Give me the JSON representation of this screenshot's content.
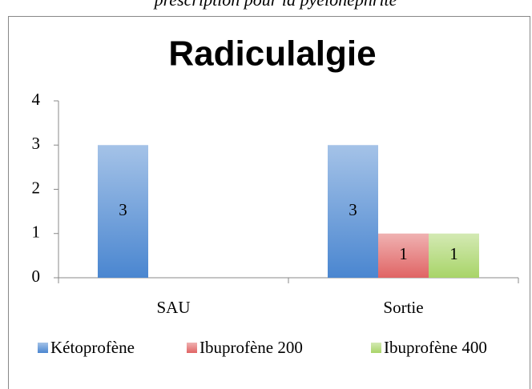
{
  "caption": "prescription pour la pyélonéphrite",
  "chart_data": {
    "type": "bar",
    "title": "Radiculalgie",
    "categories": [
      "SAU",
      "Sortie"
    ],
    "series": [
      {
        "name": "Kétoprofène",
        "color": "#4a86d0",
        "values": [
          3,
          3
        ]
      },
      {
        "name": "Ibuprofène 200",
        "color": "#e06464",
        "values": [
          null,
          1
        ]
      },
      {
        "name": "Ibuprofène 400",
        "color": "#a8d468",
        "values": [
          null,
          1
        ]
      }
    ],
    "ylim": [
      0,
      4
    ],
    "yticks": [
      0,
      1,
      2,
      3,
      4
    ],
    "legend": "bottom"
  }
}
